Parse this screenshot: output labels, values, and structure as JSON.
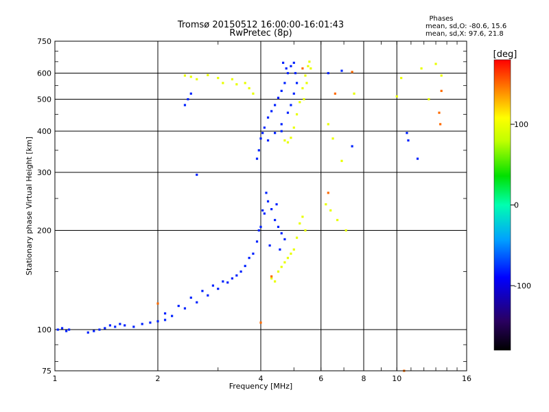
{
  "chart_data": {
    "type": "scatter",
    "title": "Tromsø 20150512 16:00:00-16:01:43",
    "subtitle": "RwPretec (8p)",
    "xlabel": "Frequency [MHz]",
    "ylabel": "Stationary phase Virtual Height [km]",
    "x_scale": "log",
    "y_scale": "log",
    "xlim": [
      1,
      16
    ],
    "ylim": [
      75,
      750
    ],
    "x_ticks": [
      "1",
      "2",
      "4",
      "6",
      "8",
      "10",
      "16"
    ],
    "y_ticks": [
      "75",
      "100",
      "200",
      "300",
      "400",
      "500",
      "600",
      "750"
    ],
    "grid": true,
    "phases": {
      "heading": "Phases",
      "o_line": "mean, sd,O: -80.6, 15.6",
      "x_line": "mean, sd,X:  97.6, 21.8"
    },
    "colorbar": {
      "label": "[deg]",
      "range": [
        -180,
        180
      ],
      "ticks": [
        "100",
        "0",
        "-100"
      ],
      "tick_values": [
        100,
        0,
        -100
      ]
    },
    "series": [
      {
        "mode": "O",
        "color_value": -80,
        "points": [
          [
            1.02,
            100
          ],
          [
            1.05,
            101
          ],
          [
            1.08,
            99
          ],
          [
            1.1,
            100
          ],
          [
            1.25,
            98
          ],
          [
            1.3,
            99
          ],
          [
            1.35,
            100
          ],
          [
            1.4,
            101
          ],
          [
            1.45,
            103
          ],
          [
            1.5,
            102
          ],
          [
            1.55,
            104
          ],
          [
            1.6,
            103
          ],
          [
            1.7,
            102
          ],
          [
            1.8,
            104
          ],
          [
            1.9,
            105
          ],
          [
            2.0,
            106
          ],
          [
            2.1,
            107
          ],
          [
            2.2,
            110
          ],
          [
            2.4,
            116
          ],
          [
            2.6,
            121
          ],
          [
            2.8,
            127
          ],
          [
            3.0,
            133
          ],
          [
            3.2,
            139
          ],
          [
            3.4,
            146
          ],
          [
            3.6,
            156
          ],
          [
            3.8,
            170
          ],
          [
            3.9,
            185
          ],
          [
            4.0,
            205
          ],
          [
            4.1,
            225
          ],
          [
            4.2,
            245
          ],
          [
            4.3,
            232
          ],
          [
            4.4,
            215
          ],
          [
            4.5,
            205
          ],
          [
            4.6,
            196
          ],
          [
            4.7,
            188
          ],
          [
            2.1,
            112
          ],
          [
            2.3,
            118
          ],
          [
            2.5,
            125
          ],
          [
            2.7,
            131
          ],
          [
            2.9,
            136
          ],
          [
            3.1,
            140
          ],
          [
            3.3,
            143
          ],
          [
            3.5,
            150
          ],
          [
            3.7,
            165
          ],
          [
            3.95,
            200
          ],
          [
            4.05,
            230
          ],
          [
            4.15,
            260
          ],
          [
            4.25,
            180
          ],
          [
            4.45,
            240
          ],
          [
            4.55,
            175
          ],
          [
            3.9,
            330
          ],
          [
            3.95,
            350
          ],
          [
            4.0,
            380
          ],
          [
            4.05,
            395
          ],
          [
            4.1,
            410
          ],
          [
            4.2,
            440
          ],
          [
            4.3,
            460
          ],
          [
            4.4,
            480
          ],
          [
            4.5,
            505
          ],
          [
            4.6,
            530
          ],
          [
            4.7,
            560
          ],
          [
            4.8,
            600
          ],
          [
            4.9,
            630
          ],
          [
            5.0,
            645
          ],
          [
            4.65,
            645
          ],
          [
            4.75,
            620
          ],
          [
            5.05,
            600
          ],
          [
            5.1,
            560
          ],
          [
            5.0,
            520
          ],
          [
            4.9,
            480
          ],
          [
            4.8,
            455
          ],
          [
            4.6,
            420
          ],
          [
            4.4,
            395
          ],
          [
            4.2,
            375
          ],
          [
            2.4,
            480
          ],
          [
            2.45,
            500
          ],
          [
            2.5,
            520
          ],
          [
            2.6,
            295
          ],
          [
            7.4,
            360
          ],
          [
            10.7,
            395
          ],
          [
            11.5,
            330
          ],
          [
            10.8,
            375
          ],
          [
            6.3,
            600
          ],
          [
            6.9,
            610
          ],
          [
            4.6,
            400
          ]
        ]
      },
      {
        "mode": "X",
        "color_value": 98,
        "points": [
          [
            2.4,
            590
          ],
          [
            2.5,
            585
          ],
          [
            2.6,
            575
          ],
          [
            2.8,
            592
          ],
          [
            3.0,
            580
          ],
          [
            3.1,
            560
          ],
          [
            3.3,
            575
          ],
          [
            3.4,
            555
          ],
          [
            3.6,
            560
          ],
          [
            3.7,
            540
          ],
          [
            3.8,
            520
          ],
          [
            4.7,
            375
          ],
          [
            4.8,
            370
          ],
          [
            4.9,
            382
          ],
          [
            5.0,
            410
          ],
          [
            5.1,
            450
          ],
          [
            5.2,
            490
          ],
          [
            5.3,
            540
          ],
          [
            5.4,
            590
          ],
          [
            5.5,
            630
          ],
          [
            5.55,
            650
          ],
          [
            5.6,
            620
          ],
          [
            5.45,
            560
          ],
          [
            5.35,
            500
          ],
          [
            4.5,
            150
          ],
          [
            4.6,
            155
          ],
          [
            4.7,
            160
          ],
          [
            4.8,
            165
          ],
          [
            4.9,
            170
          ],
          [
            5.0,
            175
          ],
          [
            5.1,
            190
          ],
          [
            5.2,
            210
          ],
          [
            5.3,
            220
          ],
          [
            5.4,
            200
          ],
          [
            4.4,
            140
          ],
          [
            4.3,
            143
          ],
          [
            6.3,
            420
          ],
          [
            6.5,
            380
          ],
          [
            6.9,
            325
          ],
          [
            7.5,
            520
          ],
          [
            10.0,
            510
          ],
          [
            10.3,
            580
          ],
          [
            11.8,
            620
          ],
          [
            13.0,
            640
          ],
          [
            12.4,
            500
          ],
          [
            13.5,
            590
          ],
          [
            6.2,
            240
          ],
          [
            6.4,
            230
          ],
          [
            7.1,
            200
          ],
          [
            6.7,
            215
          ]
        ]
      },
      {
        "mode": "other",
        "color_value": 150,
        "points": [
          [
            2.0,
            120
          ],
          [
            4.0,
            105
          ],
          [
            4.3,
            145
          ],
          [
            5.3,
            620
          ],
          [
            6.3,
            260
          ],
          [
            6.6,
            520
          ],
          [
            7.4,
            605
          ],
          [
            10.5,
            75
          ],
          [
            13.3,
            455
          ],
          [
            13.5,
            530
          ],
          [
            13.4,
            420
          ]
        ]
      }
    ]
  }
}
